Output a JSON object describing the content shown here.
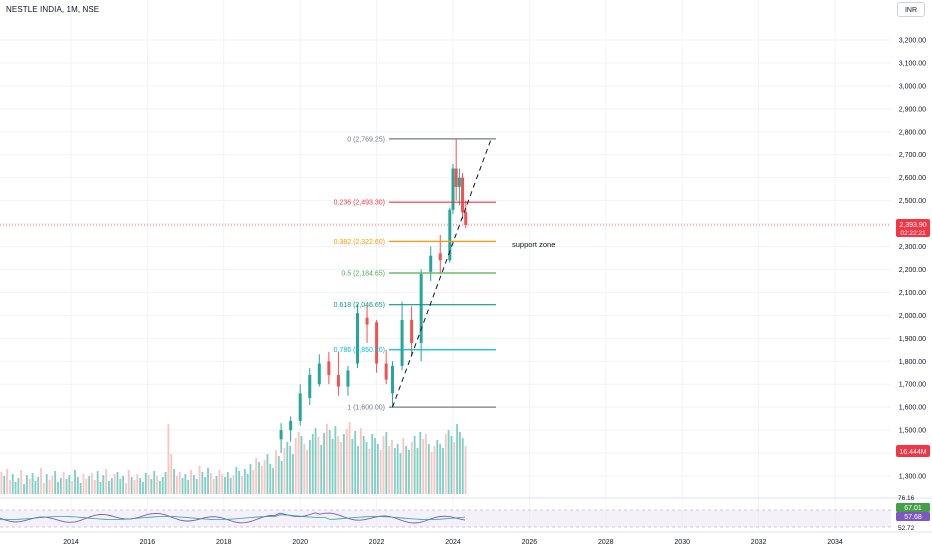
{
  "header": {
    "title": "NESTLE INDIA, 1M, NSE",
    "currency": "INR"
  },
  "colors": {
    "up": "#26a69a",
    "down": "#ef5350",
    "up_vol": "#7fcfc4",
    "down_vol": "#f7c6c4",
    "grid": "#f0f3fa",
    "axis_text": "#131722",
    "price_line": "#f23645"
  },
  "annotations": {
    "support_zone": "support zone"
  },
  "chart_data": [
    {
      "type": "candlestick",
      "title": "NESTLE INDIA, 1M, NSE",
      "y_axis": {
        "ticks": [
          "3,200.00",
          "3,100.00",
          "3,000.00",
          "2,900.00",
          "2,800.00",
          "2,700.00",
          "2,600.00",
          "2,500.00",
          "2,400.00",
          "2,300.00",
          "2,200.00",
          "2,100.00",
          "2,000.00",
          "1,900.00",
          "1,800.00",
          "1,700.00",
          "1,600.00",
          "1,500.00",
          "1,400.00",
          "1,300.00"
        ],
        "range": [
          1270,
          3250
        ]
      },
      "x_axis": {
        "ticks": [
          "2014",
          "2016",
          "2018",
          "2020",
          "2022",
          "2024",
          "2026",
          "2028",
          "2030",
          "2032",
          "2034"
        ]
      },
      "last_price": {
        "value": "2,393.90",
        "countdown": "02:22:21",
        "numeric": 2393.9
      },
      "volume_label": "16.444M",
      "fib_levels": [
        {
          "label": "0 (2,769.25)",
          "value": 2769.25,
          "color": "#787b86"
        },
        {
          "label": "0.236 (2,493.30)",
          "value": 2493.3,
          "color": "#f23645"
        },
        {
          "label": "0.382 (2,322.60)",
          "value": 2322.6,
          "color": "#ff9800"
        },
        {
          "label": "0.5 (2,184.65)",
          "value": 2184.65,
          "color": "#4caf50"
        },
        {
          "label": "0.618 (2,046.65)",
          "value": 2046.65,
          "color": "#089981"
        },
        {
          "label": "0.786 (1,850.20)",
          "value": 1850.2,
          "color": "#00bcd4"
        },
        {
          "label": "1 (1,600.00)",
          "value": 1600.0,
          "color": "#787b86"
        }
      ],
      "trend_line": {
        "from": {
          "date": "2022-06",
          "price": 1600
        },
        "to": {
          "date": "2025-01",
          "price": 2769.25
        }
      },
      "candles": [
        {
          "t": "2019-07",
          "o": 1460,
          "h": 1530,
          "l": 1400,
          "c": 1500
        },
        {
          "t": "2019-10",
          "o": 1500,
          "h": 1560,
          "l": 1450,
          "c": 1540
        },
        {
          "t": "2020-01",
          "o": 1540,
          "h": 1700,
          "l": 1520,
          "c": 1660
        },
        {
          "t": "2020-04",
          "o": 1640,
          "h": 1770,
          "l": 1610,
          "c": 1740
        },
        {
          "t": "2020-07",
          "o": 1700,
          "h": 1830,
          "l": 1690,
          "c": 1790
        },
        {
          "t": "2020-10",
          "o": 1800,
          "h": 1840,
          "l": 1700,
          "c": 1740
        },
        {
          "t": "2021-01",
          "o": 1740,
          "h": 1840,
          "l": 1650,
          "c": 1690
        },
        {
          "t": "2021-04",
          "o": 1690,
          "h": 1780,
          "l": 1650,
          "c": 1760
        },
        {
          "t": "2021-07",
          "o": 1790,
          "h": 2050,
          "l": 1770,
          "c": 2010
        },
        {
          "t": "2021-10",
          "o": 1990,
          "h": 2040,
          "l": 1880,
          "c": 1960
        },
        {
          "t": "2022-01",
          "o": 1970,
          "h": 1980,
          "l": 1750,
          "c": 1790
        },
        {
          "t": "2022-04",
          "o": 1790,
          "h": 1850,
          "l": 1700,
          "c": 1720
        },
        {
          "t": "2022-06",
          "o": 1660,
          "h": 1800,
          "l": 1600,
          "c": 1780
        },
        {
          "t": "2022-09",
          "o": 1780,
          "h": 2060,
          "l": 1760,
          "c": 1980
        },
        {
          "t": "2022-12",
          "o": 1980,
          "h": 2040,
          "l": 1820,
          "c": 1880
        },
        {
          "t": "2023-03",
          "o": 1880,
          "h": 2200,
          "l": 1800,
          "c": 2180
        },
        {
          "t": "2023-06",
          "o": 2190,
          "h": 2300,
          "l": 2150,
          "c": 2260
        },
        {
          "t": "2023-09",
          "o": 2270,
          "h": 2350,
          "l": 2180,
          "c": 2240
        },
        {
          "t": "2023-12",
          "o": 2240,
          "h": 2470,
          "l": 2230,
          "c": 2460
        },
        {
          "t": "2024-01",
          "o": 2460,
          "h": 2660,
          "l": 2440,
          "c": 2640
        },
        {
          "t": "2024-02",
          "o": 2640,
          "h": 2769.25,
          "l": 2500,
          "c": 2560
        },
        {
          "t": "2024-03",
          "o": 2560,
          "h": 2640,
          "l": 2480,
          "c": 2600
        },
        {
          "t": "2024-04",
          "o": 2600,
          "h": 2620,
          "l": 2420,
          "c": 2450
        },
        {
          "t": "2024-05",
          "o": 2450,
          "h": 2500,
          "l": 2380,
          "c": 2393.9
        }
      ],
      "rsi": {
        "ticks": [
          "76.16",
          "67.01",
          "57.68",
          "52.72"
        ],
        "last_values": [
          "67.01",
          "57.68"
        ]
      }
    }
  ]
}
